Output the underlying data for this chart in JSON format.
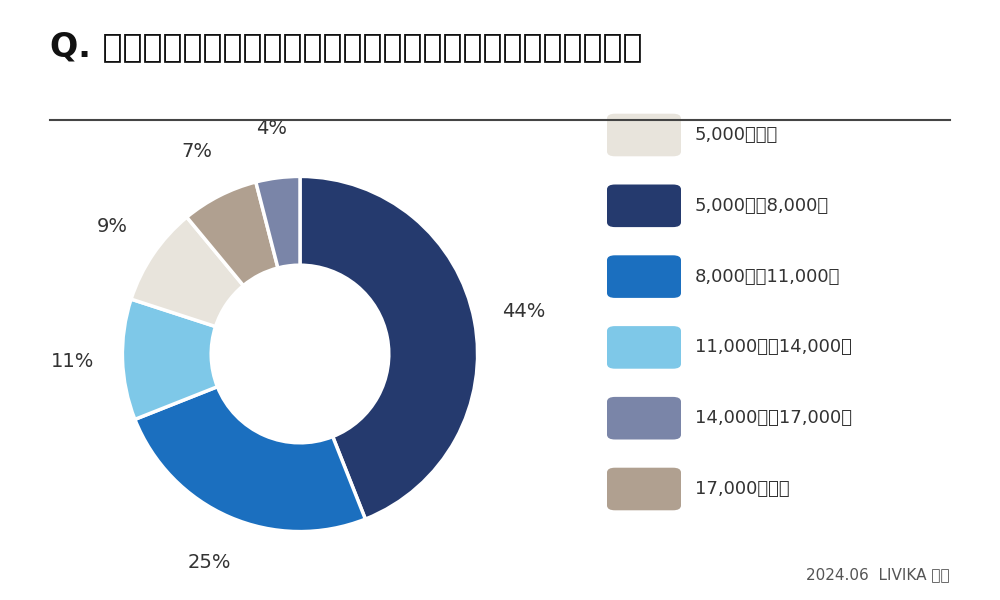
{
  "title_q": "Q.",
  "title_text": " 一年間を通して二人暮らしの平均電気代はどのくらいですか",
  "slices": [
    44,
    25,
    11,
    9,
    7,
    4
  ],
  "pct_labels": [
    "44%",
    "25%",
    "11%",
    "9%",
    "7%",
    "4%"
  ],
  "colors": [
    "#253A6E",
    "#1B6FBF",
    "#7EC8E8",
    "#E8E4DC",
    "#B0A090",
    "#7A85A8"
  ],
  "legend_labels": [
    "5,000円以下",
    "5,000円〜8,000円",
    "8,000円〜11,000円",
    "11,000円〜14,000円",
    "14,000円〜17,000円",
    "17,000円以上"
  ],
  "legend_colors": [
    "#E8E4DC",
    "#253A6E",
    "#1B6FBF",
    "#7EC8E8",
    "#7A85A8",
    "#B0A090"
  ],
  "footnote": "2024.06  LIVIKA 調査",
  "background_color": "#FFFFFF",
  "startangle": 90
}
